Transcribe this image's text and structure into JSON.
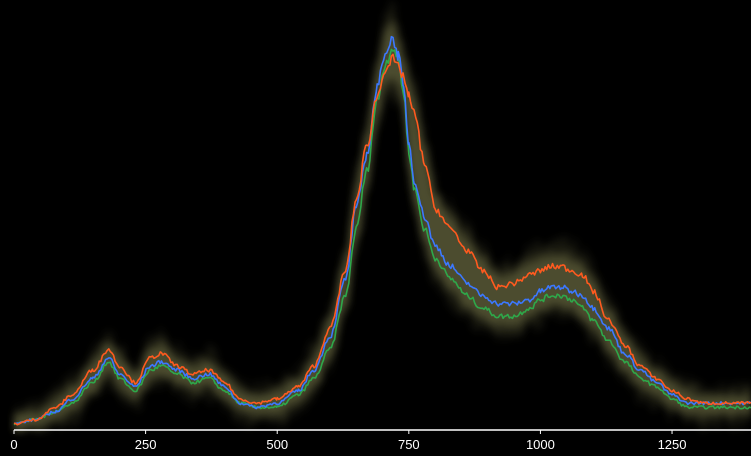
{
  "chart_data": {
    "type": "line",
    "title": "",
    "xlabel": "",
    "ylabel": "",
    "xlim": [
      0,
      1400
    ],
    "ylim": [
      0,
      100
    ],
    "grid": false,
    "legend": "none",
    "x_ticks": [
      0,
      250,
      500,
      750,
      1000,
      1250
    ],
    "x_tick_labels": [
      "0",
      "250",
      "500",
      "750",
      "1000",
      "1250"
    ],
    "background_color": "#000000",
    "axis_color": "#ffffff",
    "band_color": "#c8c878",
    "series": [
      {
        "color": "#ff5a1f",
        "x": [
          0,
          40,
          80,
          110,
          150,
          180,
          200,
          230,
          260,
          280,
          310,
          340,
          370,
          400,
          430,
          460,
          500,
          540,
          570,
          600,
          630,
          650,
          670,
          690,
          705,
          720,
          730,
          740,
          750,
          760,
          780,
          800,
          830,
          860,
          890,
          920,
          950,
          980,
          1000,
          1020,
          1040,
          1060,
          1080,
          1100,
          1130,
          1160,
          1190,
          1220,
          1250,
          1280,
          1310,
          1340,
          1370,
          1400
        ],
        "y": [
          1,
          2,
          5,
          8,
          14,
          19,
          15,
          11,
          17,
          18,
          15,
          13,
          14,
          11,
          7,
          6,
          7,
          10,
          15,
          24,
          38,
          55,
          68,
          80,
          87,
          89,
          87,
          85,
          80,
          76,
          64,
          53,
          48,
          43,
          38,
          34,
          35,
          37,
          38,
          39,
          39,
          38,
          37,
          33,
          26,
          20,
          15,
          12,
          9,
          7,
          6,
          6,
          6,
          6
        ]
      },
      {
        "color": "#3c78ff",
        "x": [
          0,
          40,
          80,
          110,
          150,
          180,
          200,
          230,
          260,
          280,
          310,
          340,
          370,
          400,
          430,
          460,
          500,
          540,
          570,
          600,
          630,
          650,
          670,
          690,
          705,
          720,
          730,
          740,
          750,
          760,
          780,
          800,
          830,
          860,
          890,
          920,
          950,
          980,
          1000,
          1020,
          1040,
          1060,
          1080,
          1100,
          1130,
          1160,
          1190,
          1220,
          1250,
          1280,
          1310,
          1340,
          1370,
          1400
        ],
        "y": [
          1,
          2,
          4,
          7,
          12,
          17,
          13,
          10,
          15,
          16,
          14,
          12,
          13,
          10,
          6,
          5,
          6,
          9,
          14,
          22,
          36,
          53,
          66,
          82,
          91,
          94,
          90,
          82,
          69,
          60,
          51,
          44,
          39,
          35,
          32,
          30,
          30,
          31,
          33,
          34,
          34,
          33,
          32,
          29,
          24,
          18,
          14,
          11,
          8,
          6,
          6,
          6,
          6,
          6
        ]
      },
      {
        "color": "#2ea84a",
        "x": [
          0,
          40,
          80,
          110,
          150,
          180,
          200,
          230,
          260,
          280,
          310,
          340,
          370,
          400,
          430,
          460,
          500,
          540,
          570,
          600,
          630,
          650,
          670,
          690,
          705,
          720,
          730,
          740,
          750,
          760,
          780,
          800,
          830,
          860,
          890,
          920,
          950,
          980,
          1000,
          1020,
          1040,
          1060,
          1080,
          1100,
          1130,
          1160,
          1190,
          1220,
          1250,
          1280,
          1310,
          1340,
          1370,
          1400
        ],
        "y": [
          1,
          2,
          4,
          6,
          11,
          16,
          12,
          9,
          14,
          15,
          13,
          11,
          12,
          9,
          6,
          5,
          5,
          8,
          12,
          19,
          32,
          48,
          62,
          79,
          88,
          92,
          89,
          81,
          67,
          58,
          48,
          41,
          36,
          32,
          29,
          27,
          27,
          29,
          31,
          32,
          32,
          31,
          29,
          26,
          21,
          16,
          12,
          10,
          7,
          5,
          5,
          5,
          5,
          5
        ]
      }
    ]
  }
}
